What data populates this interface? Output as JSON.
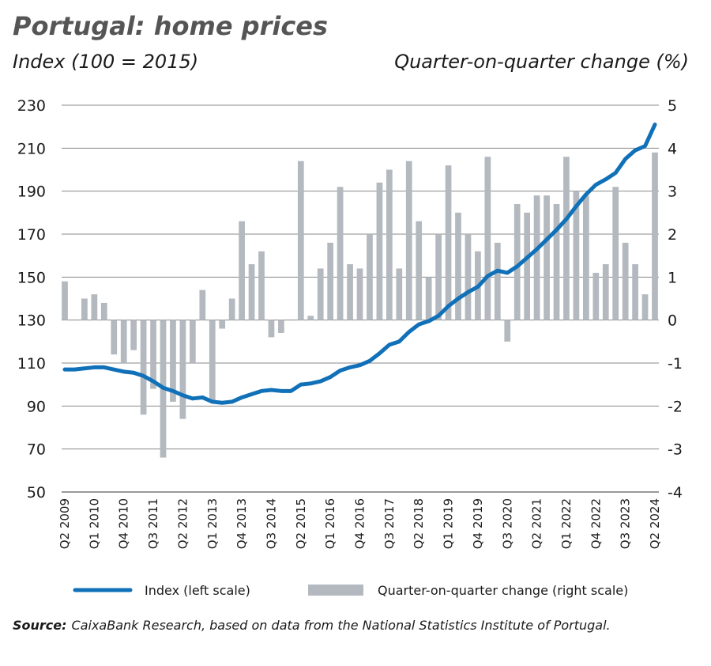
{
  "chart_data": {
    "type": "bar_line",
    "title": "Portugal: home prices",
    "y_label": "Index (100 = 2015)",
    "y2_label": "Quarter-on-quarter change (%)",
    "categories": [
      "Q2 2009",
      null,
      null,
      "Q1 2010",
      null,
      null,
      "Q4 2010",
      null,
      null,
      "Q3 2011",
      null,
      null,
      "Q2 2012",
      null,
      null,
      "Q1 2013",
      null,
      null,
      "Q4 2013",
      null,
      null,
      "Q3 2014",
      null,
      null,
      "Q2 2015",
      null,
      null,
      "Q1 2016",
      null,
      null,
      "Q4 2016",
      null,
      null,
      "Q3 2017",
      null,
      null,
      "Q2 2018",
      null,
      null,
      "Q1 2019",
      null,
      null,
      "Q4 2019",
      null,
      null,
      "Q3 2020",
      null,
      null,
      "Q2 2021",
      null,
      null,
      "Q1 2022",
      null,
      null,
      "Q4 2022",
      null,
      null,
      "Q3 2023",
      null,
      null,
      "Q2 2024"
    ],
    "series": [
      {
        "name": "Index (left scale)",
        "color": "#1070b8",
        "kind": "line",
        "values": [
          107,
          107,
          107.5,
          108,
          108,
          107,
          106,
          105.5,
          104,
          101.5,
          98.5,
          97,
          95,
          93.5,
          94,
          92,
          91.5,
          92,
          94,
          95.5,
          97,
          97.5,
          97,
          97,
          100,
          100.5,
          101.5,
          103.5,
          106.5,
          108,
          109,
          111,
          114.5,
          118.5,
          120,
          124.5,
          128,
          129.5,
          132,
          136.5,
          140,
          143,
          145.5,
          150.5,
          153,
          152,
          155,
          159,
          163,
          167.5,
          172,
          177,
          183,
          188.5,
          193,
          195.5,
          198.5,
          205,
          209,
          211,
          221
        ]
      },
      {
        "name": "Quarter-on-quarter change (right scale)",
        "color": "#b3b9be",
        "kind": "bar",
        "axis": "y2",
        "values": [
          0.9,
          0.0,
          0.5,
          0.6,
          0.4,
          -0.8,
          -1.0,
          -0.7,
          -2.2,
          -1.6,
          -3.2,
          -1.9,
          -2.3,
          -1.0,
          0.7,
          -1.9,
          -0.2,
          0.5,
          2.3,
          1.3,
          1.6,
          -0.4,
          -0.3,
          0.0,
          3.7,
          0.1,
          1.2,
          1.8,
          3.1,
          1.3,
          1.2,
          2.0,
          3.2,
          3.5,
          1.2,
          3.7,
          2.3,
          1.0,
          2.0,
          3.6,
          2.5,
          2.0,
          1.6,
          3.8,
          1.8,
          -0.5,
          2.7,
          2.5,
          2.9,
          2.9,
          2.7,
          3.8,
          3.0,
          2.9,
          1.1,
          1.3,
          3.1,
          1.8,
          1.3,
          0.6,
          3.9
        ]
      }
    ],
    "ylim": [
      50,
      230
    ],
    "yticks": [
      50,
      70,
      90,
      110,
      130,
      150,
      170,
      190,
      210,
      230
    ],
    "y2lim": [
      -4,
      5
    ],
    "y2ticks": [
      -4,
      -3,
      -2,
      -1,
      0,
      1,
      2,
      3,
      4,
      5
    ],
    "grid": true,
    "source_label": "Source:",
    "source": "CaixaBank Research, based on data from the National Statistics Institute of Portugal."
  }
}
